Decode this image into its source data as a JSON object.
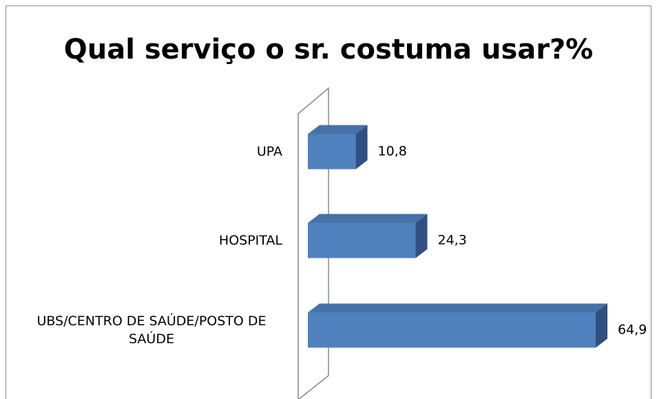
{
  "chart_data": {
    "type": "bar3d_horizontal",
    "title": "Qual serviço o sr. costuma usar?%",
    "categories": [
      "UPA",
      "HOSPITAL",
      "UBS/CENTRO DE SAÚDE/POSTO DE SAÚDE"
    ],
    "values": [
      10.8,
      24.3,
      64.9
    ],
    "value_labels": [
      "10,8",
      "24,3",
      "64,9"
    ],
    "color": "#4f81bd"
  }
}
